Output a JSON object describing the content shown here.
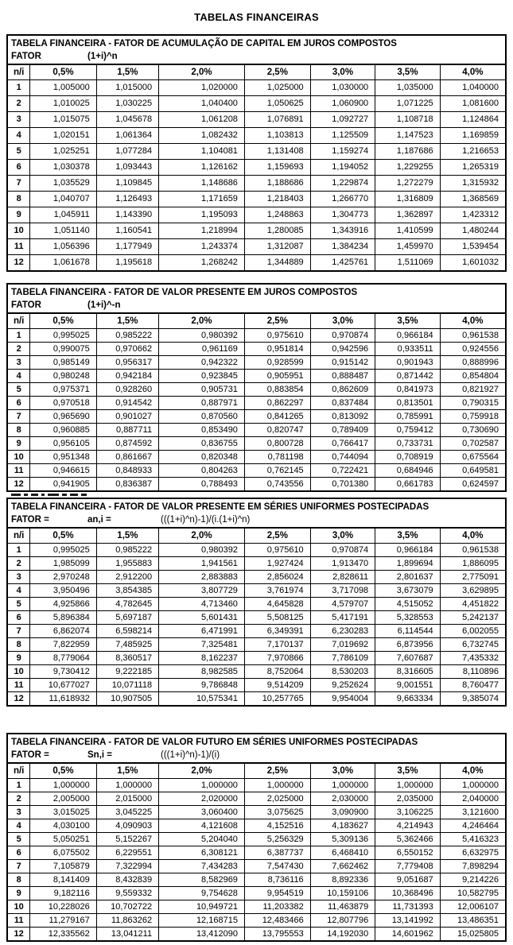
{
  "page_title": "TABELAS FINANCEIRAS",
  "columns": [
    "n/i",
    "0,5%",
    "1,5%",
    "2,0%",
    "2,5%",
    "3,0%",
    "3,5%",
    "4,0%"
  ],
  "tables": [
    {
      "title": "TABELA FINANCEIRA - FATOR DE ACUMULAÇÃO DE CAPITAL EM JUROS COMPOSTOS",
      "fator": {
        "label": "FATOR",
        "symbol": "(1+i)^n",
        "formula": ""
      },
      "rows": [
        [
          "1",
          "1,005000",
          "1,015000",
          "1,020000",
          "1,025000",
          "1,030000",
          "1,035000",
          "1,040000"
        ],
        [
          "2",
          "1,010025",
          "1,030225",
          "1,040400",
          "1,050625",
          "1,060900",
          "1,071225",
          "1,081600"
        ],
        [
          "3",
          "1,015075",
          "1,045678",
          "1,061208",
          "1,076891",
          "1,092727",
          "1,108718",
          "1,124864"
        ],
        [
          "4",
          "1,020151",
          "1,061364",
          "1,082432",
          "1,103813",
          "1,125509",
          "1,147523",
          "1,169859"
        ],
        [
          "5",
          "1,025251",
          "1,077284",
          "1,104081",
          "1,131408",
          "1,159274",
          "1,187686",
          "1,216653"
        ],
        [
          "6",
          "1,030378",
          "1,093443",
          "1,126162",
          "1,159693",
          "1,194052",
          "1,229255",
          "1,265319"
        ],
        [
          "7",
          "1,035529",
          "1,109845",
          "1,148686",
          "1,188686",
          "1,229874",
          "1,272279",
          "1,315932"
        ],
        [
          "8",
          "1,040707",
          "1,126493",
          "1,171659",
          "1,218403",
          "1,266770",
          "1,316809",
          "1,368569"
        ],
        [
          "9",
          "1,045911",
          "1,143390",
          "1,195093",
          "1,248863",
          "1,304773",
          "1,362897",
          "1,423312"
        ],
        [
          "10",
          "1,051140",
          "1,160541",
          "1,218994",
          "1,280085",
          "1,343916",
          "1,410599",
          "1,480244"
        ],
        [
          "11",
          "1,056396",
          "1,177949",
          "1,243374",
          "1,312087",
          "1,384234",
          "1,459970",
          "1,539454"
        ],
        [
          "12",
          "1,061678",
          "1,195618",
          "1,268242",
          "1,344889",
          "1,425761",
          "1,511069",
          "1,601032"
        ]
      ]
    },
    {
      "title": "TABELA FINANCEIRA - FATOR DE VALOR PRESENTE EM JUROS COMPOSTOS",
      "fator": {
        "label": "FATOR",
        "symbol": "(1+i)^-n",
        "formula": ""
      },
      "rows": [
        [
          "1",
          "0,995025",
          "0,985222",
          "0,980392",
          "0,975610",
          "0,970874",
          "0,966184",
          "0,961538"
        ],
        [
          "2",
          "0,990075",
          "0,970662",
          "0,961169",
          "0,951814",
          "0,942596",
          "0,933511",
          "0,924556"
        ],
        [
          "3",
          "0,985149",
          "0,956317",
          "0,942322",
          "0,928599",
          "0,915142",
          "0,901943",
          "0,888996"
        ],
        [
          "4",
          "0,980248",
          "0,942184",
          "0,923845",
          "0,905951",
          "0,888487",
          "0,871442",
          "0,854804"
        ],
        [
          "5",
          "0,975371",
          "0,928260",
          "0,905731",
          "0,883854",
          "0,862609",
          "0,841973",
          "0,821927"
        ],
        [
          "6",
          "0,970518",
          "0,914542",
          "0,887971",
          "0,862297",
          "0,837484",
          "0,813501",
          "0,790315"
        ],
        [
          "7",
          "0,965690",
          "0,901027",
          "0,870560",
          "0,841265",
          "0,813092",
          "0,785991",
          "0,759918"
        ],
        [
          "8",
          "0,960885",
          "0,887711",
          "0,853490",
          "0,820747",
          "0,789409",
          "0,759412",
          "0,730690"
        ],
        [
          "9",
          "0,956105",
          "0,874592",
          "0,836755",
          "0,800728",
          "0,766417",
          "0,733731",
          "0,702587"
        ],
        [
          "10",
          "0,951348",
          "0,861667",
          "0,820348",
          "0,781198",
          "0,744094",
          "0,708919",
          "0,675564"
        ],
        [
          "11",
          "0,946615",
          "0,848933",
          "0,804263",
          "0,762145",
          "0,722421",
          "0,684946",
          "0,649581"
        ],
        [
          "12",
          "0,941905",
          "0,836387",
          "0,788493",
          "0,743556",
          "0,701380",
          "0,661783",
          "0,624597"
        ]
      ]
    },
    {
      "title": "TABELA FINANCEIRA - FATOR DE VALOR PRESENTE EM SÉRIES UNIFORMES POSTECIPADAS",
      "fator": {
        "label": "FATOR  =",
        "symbol": "an,i =",
        "formula": "(((1+i)^n)-1)/(i.(1+i)^n)"
      },
      "rows": [
        [
          "1",
          "0,995025",
          "0,985222",
          "0,980392",
          "0,975610",
          "0,970874",
          "0,966184",
          "0,961538"
        ],
        [
          "2",
          "1,985099",
          "1,955883",
          "1,941561",
          "1,927424",
          "1,913470",
          "1,899694",
          "1,886095"
        ],
        [
          "3",
          "2,970248",
          "2,912200",
          "2,883883",
          "2,856024",
          "2,828611",
          "2,801637",
          "2,775091"
        ],
        [
          "4",
          "3,950496",
          "3,854385",
          "3,807729",
          "3,761974",
          "3,717098",
          "3,673079",
          "3,629895"
        ],
        [
          "5",
          "4,925866",
          "4,782645",
          "4,713460",
          "4,645828",
          "4,579707",
          "4,515052",
          "4,451822"
        ],
        [
          "6",
          "5,896384",
          "5,697187",
          "5,601431",
          "5,508125",
          "5,417191",
          "5,328553",
          "5,242137"
        ],
        [
          "7",
          "6,862074",
          "6,598214",
          "6,471991",
          "6,349391",
          "6,230283",
          "6,114544",
          "6,002055"
        ],
        [
          "8",
          "7,822959",
          "7,485925",
          "7,325481",
          "7,170137",
          "7,019692",
          "6,873956",
          "6,732745"
        ],
        [
          "9",
          "8,779064",
          "8,360517",
          "8,162237",
          "7,970866",
          "7,786109",
          "7,607687",
          "7,435332"
        ],
        [
          "10",
          "9,730412",
          "9,222185",
          "8,982585",
          "8,752064",
          "8,530203",
          "8,316605",
          "8,110896"
        ],
        [
          "11",
          "10,677027",
          "10,071118",
          "9,786848",
          "9,514209",
          "9,252624",
          "9,001551",
          "8,760477"
        ],
        [
          "12",
          "11,618932",
          "10,907505",
          "10,575341",
          "10,257765",
          "9,954004",
          "9,663334",
          "9,385074"
        ]
      ]
    },
    {
      "title": "TABELA FINANCEIRA - FATOR DE VALOR FUTURO EM SÉRIES UNIFORMES POSTECIPADAS",
      "fator": {
        "label": "FATOR  =",
        "symbol": "Sn,i =",
        "formula": "(((1+i)^n)-1)/(i)"
      },
      "rows": [
        [
          "1",
          "1,000000",
          "1,000000",
          "1,000000",
          "1,000000",
          "1,000000",
          "1,000000",
          "1,000000"
        ],
        [
          "2",
          "2,005000",
          "2,015000",
          "2,020000",
          "2,025000",
          "2,030000",
          "2,035000",
          "2,040000"
        ],
        [
          "3",
          "3,015025",
          "3,045225",
          "3,060400",
          "3,075625",
          "3,090900",
          "3,106225",
          "3,121600"
        ],
        [
          "4",
          "4,030100",
          "4,090903",
          "4,121608",
          "4,152516",
          "4,183627",
          "4,214943",
          "4,246464"
        ],
        [
          "5",
          "5,050251",
          "5,152267",
          "5,204040",
          "5,256329",
          "5,309136",
          "5,362466",
          "5,416323"
        ],
        [
          "6",
          "6,075502",
          "6,229551",
          "6,308121",
          "6,387737",
          "6,468410",
          "6,550152",
          "6,632975"
        ],
        [
          "7",
          "7,105879",
          "7,322994",
          "7,434283",
          "7,547430",
          "7,662462",
          "7,779408",
          "7,898294"
        ],
        [
          "8",
          "8,141409",
          "8,432839",
          "8,582969",
          "8,736116",
          "8,892336",
          "9,051687",
          "9,214226"
        ],
        [
          "9",
          "9,182116",
          "9,559332",
          "9,754628",
          "9,954519",
          "10,159106",
          "10,368496",
          "10,582795"
        ],
        [
          "10",
          "10,228026",
          "10,702722",
          "10,949721",
          "11,203382",
          "11,463879",
          "11,731393",
          "12,006107"
        ],
        [
          "11",
          "11,279167",
          "11,863262",
          "12,168715",
          "12,483466",
          "12,807796",
          "13,141992",
          "13,486351"
        ],
        [
          "12",
          "12,335562",
          "13,041211",
          "13,412090",
          "13,795553",
          "14,192030",
          "14,601962",
          "15,025805"
        ]
      ]
    }
  ],
  "column_widths": [
    "4.6%",
    "13.3%",
    "12.5%",
    "17.2%",
    "13.2%",
    "13.0%",
    "13.0%",
    "13.2%"
  ]
}
